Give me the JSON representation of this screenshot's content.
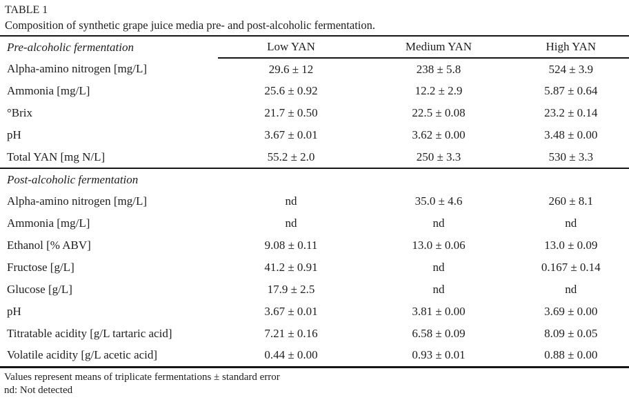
{
  "table": {
    "label": "TABLE 1",
    "caption": "Composition of synthetic grape juice media pre- and post-alcoholic fermentation.",
    "columns": [
      "Low YAN",
      "Medium YAN",
      "High YAN"
    ],
    "sections": [
      {
        "title": "Pre-alcoholic fermentation",
        "rows": [
          {
            "label": "Alpha-amino nitrogen [mg/L]",
            "values": [
              "29.6 ± 12",
              "238 ± 5.8",
              "524 ± 3.9"
            ]
          },
          {
            "label": "Ammonia [mg/L]",
            "values": [
              "25.6 ± 0.92",
              "12.2 ± 2.9",
              "5.87 ± 0.64"
            ]
          },
          {
            "label": "°Brix",
            "values": [
              "21.7 ± 0.50",
              "22.5 ± 0.08",
              "23.2 ± 0.14"
            ]
          },
          {
            "label": "pH",
            "values": [
              "3.67 ± 0.01",
              "3.62 ± 0.00",
              "3.48 ± 0.00"
            ]
          },
          {
            "label": "Total YAN [mg N/L]",
            "values": [
              "55.2 ± 2.0",
              "250 ± 3.3",
              "530 ± 3.3"
            ]
          }
        ]
      },
      {
        "title": "Post-alcoholic fermentation",
        "rows": [
          {
            "label": "Alpha-amino nitrogen [mg/L]",
            "values": [
              "nd",
              "35.0 ± 4.6",
              "260 ± 8.1"
            ]
          },
          {
            "label": "Ammonia [mg/L]",
            "values": [
              "nd",
              "nd",
              "nd"
            ]
          },
          {
            "label": "Ethanol [% ABV]",
            "values": [
              "9.08 ± 0.11",
              "13.0 ± 0.06",
              "13.0 ± 0.09"
            ]
          },
          {
            "label": "Fructose [g/L]",
            "values": [
              "41.2 ± 0.91",
              "nd",
              "0.167 ± 0.14"
            ]
          },
          {
            "label": "Glucose [g/L]",
            "values": [
              "17.9 ± 2.5",
              "nd",
              "nd"
            ]
          },
          {
            "label": "pH",
            "values": [
              "3.67 ± 0.01",
              "3.81 ± 0.00",
              "3.69 ± 0.00"
            ]
          },
          {
            "label": "Titratable acidity [g/L tartaric acid]",
            "values": [
              "7.21 ± 0.16",
              "6.58 ± 0.09",
              "8.09 ± 0.05"
            ]
          },
          {
            "label": "Volatile acidity [g/L acetic acid]",
            "values": [
              "0.44 ± 0.00",
              "0.93 ± 0.01",
              "0.88 ± 0.00"
            ]
          }
        ]
      }
    ],
    "footnotes": [
      "Values represent means of triplicate fermentations ± standard error",
      "nd: Not detected"
    ],
    "colors": {
      "rule": "#141414",
      "text": "#1d1d1d",
      "background": "#ffffff"
    }
  }
}
